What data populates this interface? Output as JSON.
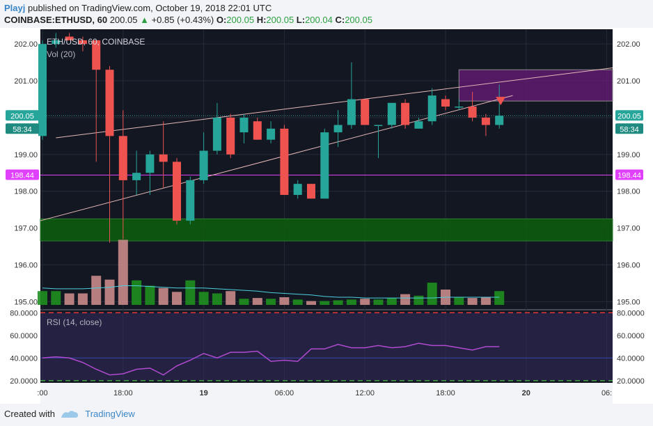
{
  "header": {
    "user": "Playj",
    "published_text": "published on TradingView.com, October 19, 2018 22:01 UTC",
    "symbol": "COINBASE:ETHUSD, 60",
    "last": "200.05",
    "change_arrow": "▲",
    "change": "+0.85 (+0.43%)",
    "o_label": "O:",
    "o": "200.05",
    "h_label": "H:",
    "h": "200.05",
    "l_label": "L:",
    "l": "200.04",
    "c_label": "C:",
    "c": "200.05"
  },
  "footer": {
    "created_with": "Created with",
    "brand": "TradingView",
    "logo_icon": "tradingview-logo-icon"
  },
  "colors": {
    "up": "#26a69a",
    "down": "#ef5350",
    "support": "#0d5f0d",
    "resistance": "#6a1b7a",
    "horizontal_line": "#e040fb",
    "rsi": "#b04ad0",
    "vol_ma": "#4dd0e1",
    "background": "#131722"
  },
  "chart_data": [
    {
      "type": "candlestick",
      "title": "ETH/USD, 60, COINBASE",
      "indicator_label": "Vol (20)",
      "ylim": [
        194.8,
        202.4
      ],
      "y_ticks": [
        "202.00",
        "201.00",
        "200.00",
        "199.00",
        "198.00",
        "197.00",
        "196.00",
        "195.00"
      ],
      "x_ticks": [
        ":00",
        "18:00",
        "19",
        "06:00",
        "12:00",
        "18:00",
        "20",
        "06:"
      ],
      "last_price_label": "200.05",
      "countdown_label": "58:34",
      "hline_label": "198.44",
      "hline_value": 198.44,
      "support_zone": [
        196.65,
        197.25
      ],
      "resistance_zone": [
        200.45,
        201.3
      ],
      "wedge_upper": [
        [
          0,
          199.45
        ],
        [
          42,
          201.35
        ]
      ],
      "wedge_lower": [
        [
          0,
          197.2
        ],
        [
          35,
          200.6
        ]
      ],
      "candles": [
        {
          "o": 199.5,
          "h": 202.1,
          "l": 199.4,
          "c": 202.0
        },
        {
          "o": 202.0,
          "h": 202.3,
          "l": 201.9,
          "c": 202.1
        },
        {
          "o": 202.2,
          "h": 202.3,
          "l": 202.1,
          "c": 202.1
        },
        {
          "o": 202.1,
          "h": 202.2,
          "l": 201.8,
          "c": 202.0
        },
        {
          "o": 202.1,
          "h": 202.1,
          "l": 198.8,
          "c": 201.3
        },
        {
          "o": 201.3,
          "h": 201.4,
          "l": 196.6,
          "c": 199.5
        },
        {
          "o": 199.5,
          "h": 200.2,
          "l": 196.7,
          "c": 198.3
        },
        {
          "o": 198.3,
          "h": 199.1,
          "l": 197.9,
          "c": 198.5
        },
        {
          "o": 198.5,
          "h": 199.1,
          "l": 197.9,
          "c": 199.0
        },
        {
          "o": 199.0,
          "h": 199.9,
          "l": 198.1,
          "c": 198.8
        },
        {
          "o": 198.8,
          "h": 198.9,
          "l": 197.1,
          "c": 197.2
        },
        {
          "o": 197.2,
          "h": 198.4,
          "l": 197.1,
          "c": 198.3
        },
        {
          "o": 198.3,
          "h": 199.6,
          "l": 198.2,
          "c": 199.1
        },
        {
          "o": 199.1,
          "h": 200.4,
          "l": 199.0,
          "c": 200.0
        },
        {
          "o": 200.0,
          "h": 200.1,
          "l": 198.9,
          "c": 199.0
        },
        {
          "o": 199.6,
          "h": 200.1,
          "l": 199.3,
          "c": 200.0
        },
        {
          "o": 199.9,
          "h": 200.0,
          "l": 199.4,
          "c": 199.4
        },
        {
          "o": 199.4,
          "h": 199.9,
          "l": 199.3,
          "c": 199.7
        },
        {
          "o": 199.7,
          "h": 199.8,
          "l": 197.9,
          "c": 197.9
        },
        {
          "o": 197.9,
          "h": 198.3,
          "l": 197.8,
          "c": 198.2
        },
        {
          "o": 198.2,
          "h": 198.2,
          "l": 197.8,
          "c": 197.8
        },
        {
          "o": 197.8,
          "h": 199.7,
          "l": 197.8,
          "c": 199.6
        },
        {
          "o": 199.6,
          "h": 200.2,
          "l": 199.2,
          "c": 199.8
        },
        {
          "o": 199.8,
          "h": 201.5,
          "l": 199.7,
          "c": 200.5
        },
        {
          "o": 200.5,
          "h": 200.5,
          "l": 199.8,
          "c": 199.8
        },
        {
          "o": 199.8,
          "h": 199.8,
          "l": 198.9,
          "c": 199.8
        },
        {
          "o": 199.8,
          "h": 200.4,
          "l": 199.7,
          "c": 200.4
        },
        {
          "o": 200.4,
          "h": 200.5,
          "l": 199.7,
          "c": 199.8
        },
        {
          "o": 199.7,
          "h": 200.0,
          "l": 199.7,
          "c": 199.9
        },
        {
          "o": 199.9,
          "h": 200.8,
          "l": 199.8,
          "c": 200.6
        },
        {
          "o": 200.5,
          "h": 200.6,
          "l": 200.2,
          "c": 200.3
        },
        {
          "o": 200.3,
          "h": 200.5,
          "l": 200.2,
          "c": 200.3
        },
        {
          "o": 200.3,
          "h": 200.7,
          "l": 199.9,
          "c": 200.0
        },
        {
          "o": 200.0,
          "h": 200.1,
          "l": 199.5,
          "c": 199.8
        },
        {
          "o": 199.8,
          "h": 200.9,
          "l": 199.7,
          "c": 200.05
        }
      ],
      "volume": [
        0.18,
        0.18,
        0.15,
        0.15,
        0.38,
        0.33,
        0.85,
        0.32,
        0.25,
        0.22,
        0.17,
        0.32,
        0.17,
        0.15,
        0.18,
        0.08,
        0.09,
        0.08,
        0.1,
        0.07,
        0.05,
        0.05,
        0.06,
        0.07,
        0.08,
        0.07,
        0.09,
        0.14,
        0.12,
        0.29,
        0.2,
        0.1,
        0.09,
        0.1,
        0.18
      ],
      "volume_ma": [
        0.22,
        0.21,
        0.21,
        0.21,
        0.22,
        0.23,
        0.25,
        0.25,
        0.24,
        0.23,
        0.22,
        0.22,
        0.22,
        0.21,
        0.2,
        0.19,
        0.18,
        0.16,
        0.15,
        0.14,
        0.13,
        0.11,
        0.1,
        0.1,
        0.09,
        0.09,
        0.09,
        0.09,
        0.09,
        0.09,
        0.1,
        0.1,
        0.1,
        0.1,
        0.1
      ]
    },
    {
      "type": "line",
      "title": "RSI (14, close)",
      "ylim": [
        18,
        82
      ],
      "y_ticks": [
        "80.0000",
        "60.0000",
        "40.0000",
        "20.0000"
      ],
      "overbought": 80,
      "oversold": 20,
      "mid": 40,
      "values": [
        40,
        41,
        40,
        36,
        30,
        25,
        26,
        30,
        31,
        25,
        33,
        38,
        44,
        40,
        45,
        45,
        46,
        37,
        38,
        37,
        48,
        48,
        52,
        49,
        49,
        51,
        49,
        50,
        53,
        51,
        51,
        49,
        47,
        50,
        50
      ]
    }
  ]
}
